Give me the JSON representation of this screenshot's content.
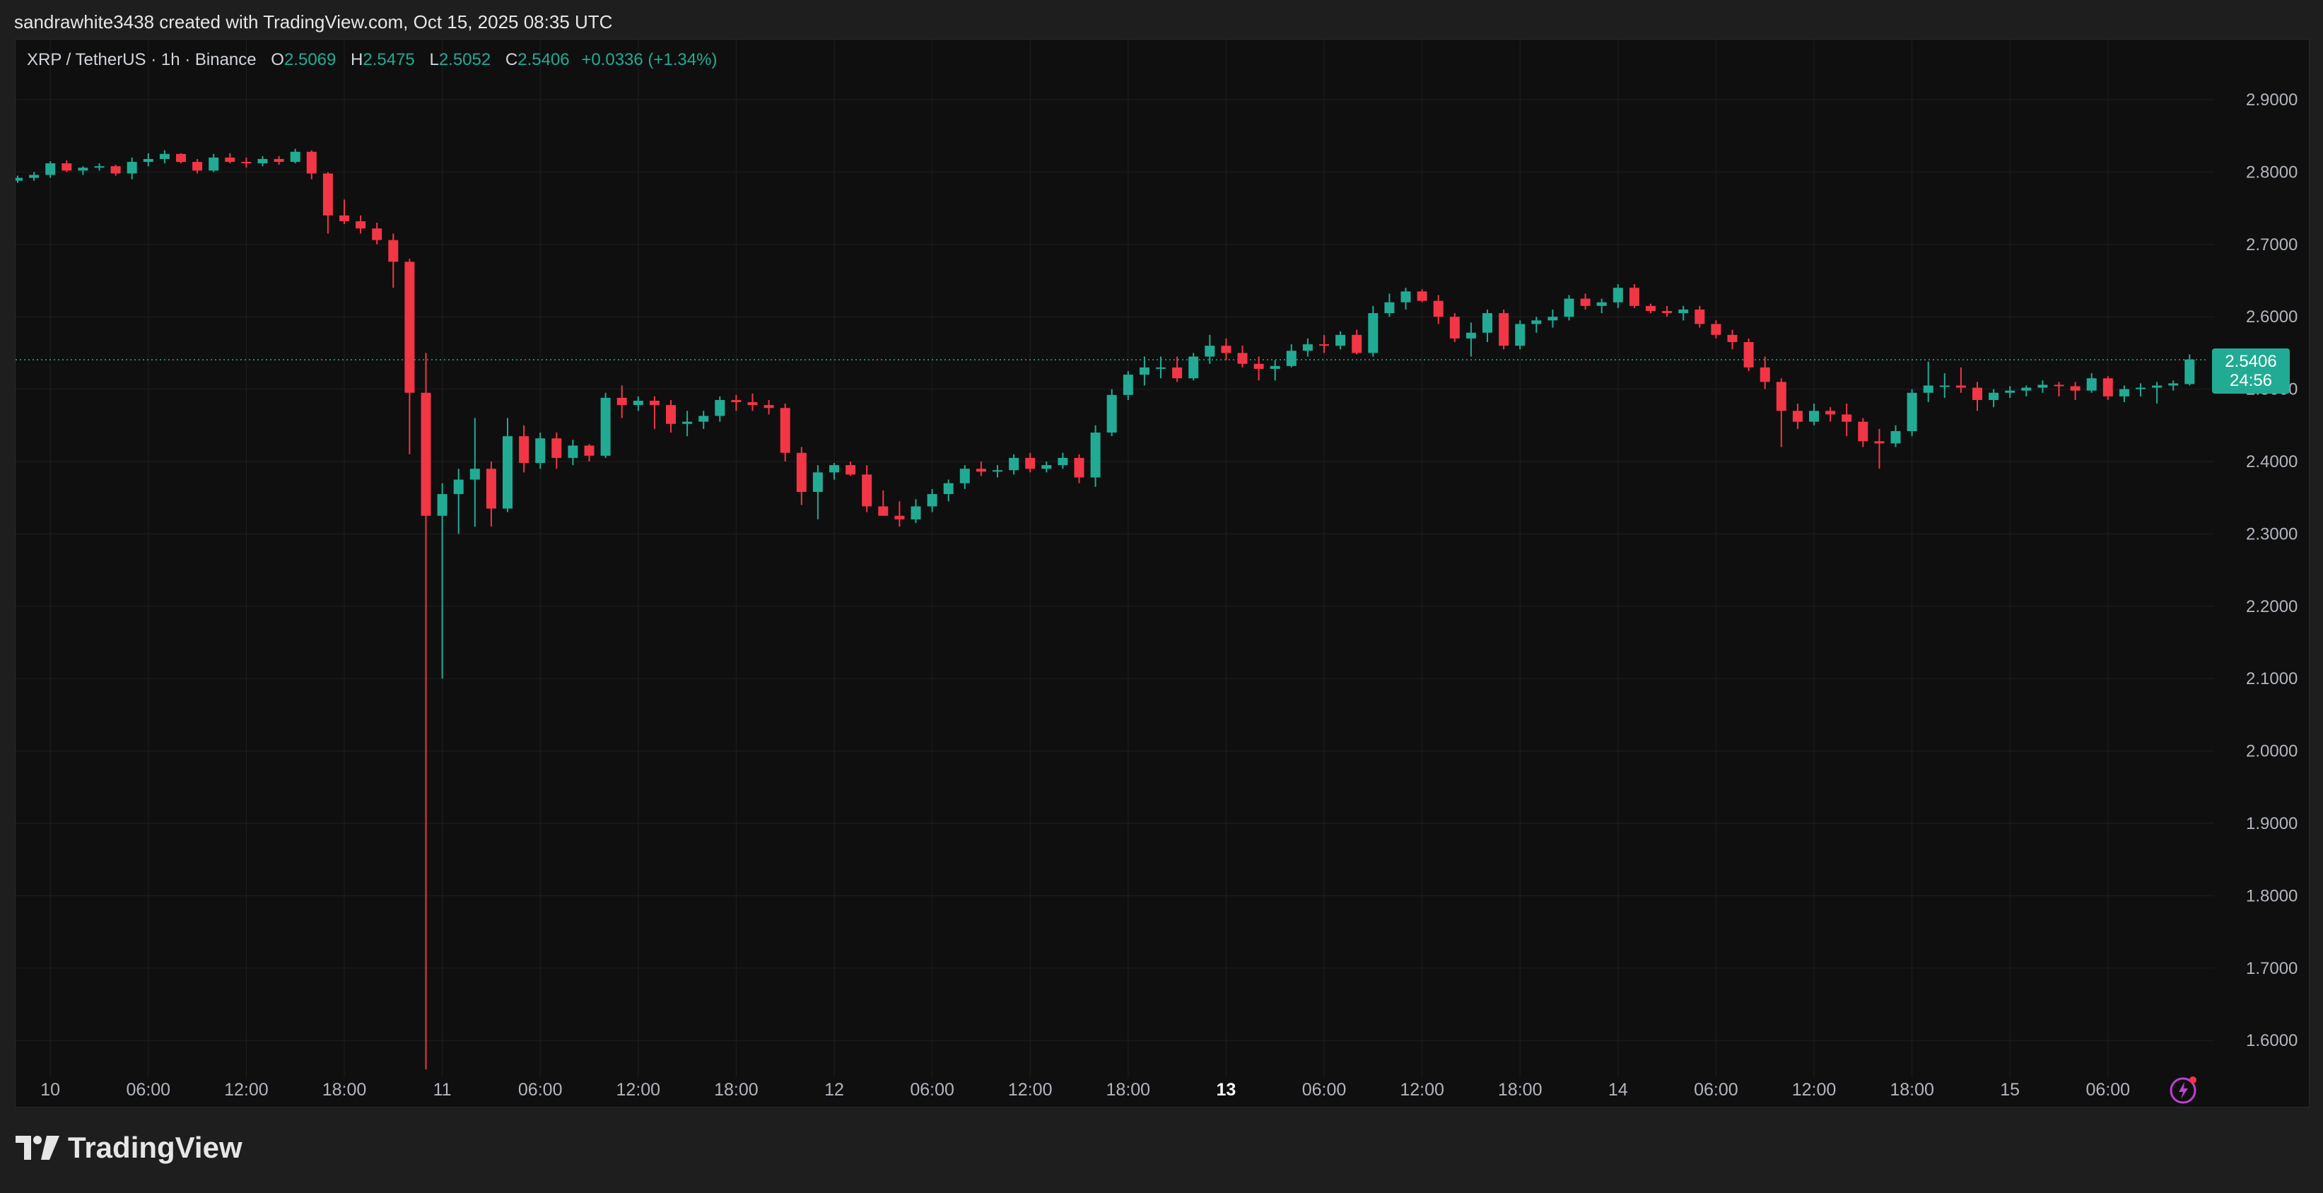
{
  "attribution": "sandrawhite3438 created with TradingView.com, Oct 15, 2025 08:35 UTC",
  "brand": "TradingView",
  "colors": {
    "up": "#22ab94",
    "down": "#f23645",
    "background": "#0f0f0f",
    "grid": "#1f1f1f",
    "axis_text": "#b2b5be",
    "alert": "#c13fd8"
  },
  "legend": {
    "symbol": "XRP / TetherUS · 1h · Binance",
    "o_label": "O",
    "o_value": "2.5069",
    "h_label": "H",
    "h_value": "2.5475",
    "l_label": "L",
    "l_value": "2.5052",
    "c_label": "C",
    "c_value": "2.5406",
    "change": "+0.0336 (+1.34%)"
  },
  "last_price": {
    "value": "2.5406",
    "countdown": "24:56"
  },
  "chart_data": {
    "type": "candlestick",
    "title": "XRP / TetherUS · 1h · Binance",
    "interval": "1h",
    "ylim": [
      1.55,
      2.95
    ],
    "y_ticks": [
      "2.9000",
      "2.8000",
      "2.7000",
      "2.6000",
      "2.5000",
      "2.4000",
      "2.3000",
      "2.2000",
      "2.1000",
      "2.0000",
      "1.9000",
      "1.8000",
      "1.7000",
      "1.6000"
    ],
    "x_ticks": [
      {
        "label": "10",
        "index": 2,
        "bold": false
      },
      {
        "label": "06:00",
        "index": 8,
        "bold": false
      },
      {
        "label": "12:00",
        "index": 14,
        "bold": false
      },
      {
        "label": "18:00",
        "index": 20,
        "bold": false
      },
      {
        "label": "11",
        "index": 26,
        "bold": false
      },
      {
        "label": "06:00",
        "index": 32,
        "bold": false
      },
      {
        "label": "12:00",
        "index": 38,
        "bold": false
      },
      {
        "label": "18:00",
        "index": 44,
        "bold": false
      },
      {
        "label": "12",
        "index": 50,
        "bold": false
      },
      {
        "label": "06:00",
        "index": 56,
        "bold": false
      },
      {
        "label": "12:00",
        "index": 62,
        "bold": false
      },
      {
        "label": "18:00",
        "index": 68,
        "bold": false
      },
      {
        "label": "13",
        "index": 74,
        "bold": true
      },
      {
        "label": "06:00",
        "index": 80,
        "bold": false
      },
      {
        "label": "12:00",
        "index": 86,
        "bold": false
      },
      {
        "label": "18:00",
        "index": 92,
        "bold": false
      },
      {
        "label": "14",
        "index": 98,
        "bold": false
      },
      {
        "label": "06:00",
        "index": 104,
        "bold": false
      },
      {
        "label": "12:00",
        "index": 110,
        "bold": false
      },
      {
        "label": "18:00",
        "index": 116,
        "bold": false
      },
      {
        "label": "15",
        "index": 122,
        "bold": false
      },
      {
        "label": "06:00",
        "index": 128,
        "bold": false
      }
    ],
    "candles": [
      [
        2.788,
        2.795,
        2.785,
        2.792
      ],
      [
        2.792,
        2.8,
        2.788,
        2.796
      ],
      [
        2.796,
        2.815,
        2.792,
        2.812
      ],
      [
        2.812,
        2.816,
        2.8,
        2.802
      ],
      [
        2.802,
        2.808,
        2.796,
        2.806
      ],
      [
        2.806,
        2.812,
        2.802,
        2.808
      ],
      [
        2.808,
        2.81,
        2.795,
        2.798
      ],
      [
        2.798,
        2.82,
        2.79,
        2.814
      ],
      [
        2.814,
        2.826,
        2.808,
        2.818
      ],
      [
        2.818,
        2.83,
        2.812,
        2.825
      ],
      [
        2.825,
        2.826,
        2.812,
        2.814
      ],
      [
        2.814,
        2.818,
        2.798,
        2.802
      ],
      [
        2.802,
        2.825,
        2.8,
        2.82
      ],
      [
        2.82,
        2.826,
        2.812,
        2.814
      ],
      [
        2.814,
        2.82,
        2.806,
        2.812
      ],
      [
        2.812,
        2.822,
        2.808,
        2.818
      ],
      [
        2.818,
        2.822,
        2.81,
        2.814
      ],
      [
        2.814,
        2.832,
        2.812,
        2.828
      ],
      [
        2.828,
        2.83,
        2.79,
        2.798
      ],
      [
        2.798,
        2.8,
        2.715,
        2.74
      ],
      [
        2.74,
        2.762,
        2.728,
        2.732
      ],
      [
        2.732,
        2.74,
        2.715,
        2.722
      ],
      [
        2.722,
        2.73,
        2.7,
        2.706
      ],
      [
        2.706,
        2.715,
        2.64,
        2.676
      ],
      [
        2.676,
        2.68,
        2.41,
        2.495
      ],
      [
        2.495,
        2.55,
        1.56,
        2.325
      ],
      [
        2.325,
        2.37,
        2.1,
        2.355
      ],
      [
        2.355,
        2.39,
        2.3,
        2.375
      ],
      [
        2.375,
        2.46,
        2.31,
        2.39
      ],
      [
        2.39,
        2.4,
        2.31,
        2.335
      ],
      [
        2.335,
        2.46,
        2.33,
        2.435
      ],
      [
        2.435,
        2.45,
        2.385,
        2.398
      ],
      [
        2.398,
        2.44,
        2.39,
        2.432
      ],
      [
        2.432,
        2.44,
        2.39,
        2.405
      ],
      [
        2.405,
        2.43,
        2.395,
        2.422
      ],
      [
        2.422,
        2.424,
        2.4,
        2.408
      ],
      [
        2.408,
        2.495,
        2.405,
        2.488
      ],
      [
        2.488,
        2.505,
        2.46,
        2.478
      ],
      [
        2.478,
        2.49,
        2.47,
        2.484
      ],
      [
        2.484,
        2.49,
        2.445,
        2.478
      ],
      [
        2.478,
        2.485,
        2.44,
        2.452
      ],
      [
        2.452,
        2.47,
        2.435,
        2.455
      ],
      [
        2.455,
        2.47,
        2.445,
        2.463
      ],
      [
        2.463,
        2.49,
        2.455,
        2.485
      ],
      [
        2.485,
        2.492,
        2.47,
        2.482
      ],
      [
        2.482,
        2.494,
        2.47,
        2.478
      ],
      [
        2.478,
        2.485,
        2.465,
        2.474
      ],
      [
        2.474,
        2.48,
        2.4,
        2.412
      ],
      [
        2.412,
        2.42,
        2.34,
        2.358
      ],
      [
        2.358,
        2.395,
        2.32,
        2.385
      ],
      [
        2.385,
        2.398,
        2.375,
        2.395
      ],
      [
        2.395,
        2.4,
        2.38,
        2.382
      ],
      [
        2.382,
        2.395,
        2.33,
        2.338
      ],
      [
        2.338,
        2.36,
        2.325,
        2.325
      ],
      [
        2.325,
        2.345,
        2.31,
        2.32
      ],
      [
        2.32,
        2.348,
        2.315,
        2.338
      ],
      [
        2.338,
        2.362,
        2.33,
        2.355
      ],
      [
        2.355,
        2.375,
        2.345,
        2.37
      ],
      [
        2.37,
        2.395,
        2.362,
        2.39
      ],
      [
        2.39,
        2.4,
        2.38,
        2.386
      ],
      [
        2.386,
        2.395,
        2.378,
        2.388
      ],
      [
        2.388,
        2.41,
        2.382,
        2.405
      ],
      [
        2.405,
        2.412,
        2.385,
        2.39
      ],
      [
        2.39,
        2.4,
        2.385,
        2.395
      ],
      [
        2.395,
        2.412,
        2.39,
        2.405
      ],
      [
        2.405,
        2.41,
        2.37,
        2.378
      ],
      [
        2.378,
        2.45,
        2.365,
        2.44
      ],
      [
        2.44,
        2.5,
        2.435,
        2.492
      ],
      [
        2.492,
        2.525,
        2.485,
        2.52
      ],
      [
        2.52,
        2.545,
        2.505,
        2.53
      ],
      [
        2.53,
        2.545,
        2.515,
        2.53
      ],
      [
        2.53,
        2.545,
        2.51,
        2.515
      ],
      [
        2.515,
        2.55,
        2.512,
        2.545
      ],
      [
        2.545,
        2.575,
        2.535,
        2.56
      ],
      [
        2.56,
        2.57,
        2.54,
        2.55
      ],
      [
        2.55,
        2.56,
        2.53,
        2.535
      ],
      [
        2.535,
        2.545,
        2.512,
        2.528
      ],
      [
        2.528,
        2.54,
        2.512,
        2.532
      ],
      [
        2.532,
        2.562,
        2.53,
        2.553
      ],
      [
        2.553,
        2.57,
        2.545,
        2.562
      ],
      [
        2.562,
        2.575,
        2.55,
        2.56
      ],
      [
        2.56,
        2.58,
        2.555,
        2.575
      ],
      [
        2.575,
        2.582,
        2.548,
        2.55
      ],
      [
        2.55,
        2.615,
        2.545,
        2.605
      ],
      [
        2.605,
        2.632,
        2.6,
        2.62
      ],
      [
        2.62,
        2.64,
        2.61,
        2.635
      ],
      [
        2.635,
        2.638,
        2.62,
        2.622
      ],
      [
        2.622,
        2.63,
        2.59,
        2.6
      ],
      [
        2.6,
        2.605,
        2.565,
        2.57
      ],
      [
        2.57,
        2.592,
        2.545,
        2.578
      ],
      [
        2.578,
        2.61,
        2.565,
        2.605
      ],
      [
        2.605,
        2.61,
        2.555,
        2.56
      ],
      [
        2.56,
        2.595,
        2.555,
        2.59
      ],
      [
        2.59,
        2.6,
        2.578,
        2.595
      ],
      [
        2.595,
        2.61,
        2.585,
        2.6
      ],
      [
        2.6,
        2.63,
        2.595,
        2.625
      ],
      [
        2.625,
        2.632,
        2.61,
        2.615
      ],
      [
        2.615,
        2.625,
        2.605,
        2.62
      ],
      [
        2.62,
        2.645,
        2.612,
        2.64
      ],
      [
        2.64,
        2.645,
        2.612,
        2.615
      ],
      [
        2.615,
        2.618,
        2.605,
        2.608
      ],
      [
        2.608,
        2.615,
        2.6,
        2.605
      ],
      [
        2.605,
        2.615,
        2.595,
        2.61
      ],
      [
        2.61,
        2.615,
        2.585,
        2.59
      ],
      [
        2.59,
        2.595,
        2.57,
        2.575
      ],
      [
        2.575,
        2.582,
        2.555,
        2.565
      ],
      [
        2.565,
        2.57,
        2.525,
        2.53
      ],
      [
        2.53,
        2.545,
        2.5,
        2.51
      ],
      [
        2.51,
        2.515,
        2.42,
        2.47
      ],
      [
        2.47,
        2.48,
        2.445,
        2.455
      ],
      [
        2.455,
        2.48,
        2.45,
        2.47
      ],
      [
        2.47,
        2.475,
        2.455,
        2.465
      ],
      [
        2.465,
        2.48,
        2.435,
        2.455
      ],
      [
        2.455,
        2.46,
        2.42,
        2.428
      ],
      [
        2.428,
        2.445,
        2.39,
        2.425
      ],
      [
        2.425,
        2.45,
        2.42,
        2.442
      ],
      [
        2.442,
        2.5,
        2.435,
        2.495
      ],
      [
        2.495,
        2.538,
        2.482,
        2.505
      ],
      [
        2.505,
        2.522,
        2.488,
        2.505
      ],
      [
        2.505,
        2.53,
        2.495,
        2.502
      ],
      [
        2.502,
        2.51,
        2.47,
        2.485
      ],
      [
        2.485,
        2.5,
        2.475,
        2.495
      ],
      [
        2.495,
        2.504,
        2.488,
        2.498
      ],
      [
        2.498,
        2.505,
        2.49,
        2.502
      ],
      [
        2.502,
        2.512,
        2.495,
        2.506
      ],
      [
        2.506,
        2.51,
        2.49,
        2.504
      ],
      [
        2.504,
        2.51,
        2.485,
        2.498
      ],
      [
        2.498,
        2.522,
        2.495,
        2.515
      ],
      [
        2.515,
        2.518,
        2.485,
        2.49
      ],
      [
        2.49,
        2.505,
        2.482,
        2.5
      ],
      [
        2.5,
        2.508,
        2.49,
        2.502
      ],
      [
        2.502,
        2.51,
        2.48,
        2.505
      ],
      [
        2.505,
        2.512,
        2.498,
        2.508
      ],
      [
        2.507,
        2.548,
        2.505,
        2.541
      ]
    ]
  }
}
